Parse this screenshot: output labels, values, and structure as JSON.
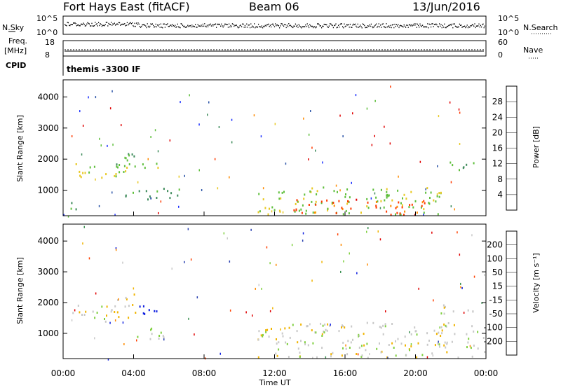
{
  "header": {
    "radar": "Fort Hays East (fitACF)",
    "beam": "Beam 06",
    "date": "13/Jun/2016"
  },
  "status": {
    "nsky_label": "N.Sky",
    "nsearch_label": "N.Search",
    "freq_label_line1": "Freq.",
    "freq_label_line2": "[MHz]",
    "nave_label": "Nave",
    "cpid_label": "CPID",
    "cpid_value": "themis -3300 IF",
    "noise_ticks_left": [
      "10^5",
      "10^0"
    ],
    "noise_ticks_right": [
      "10^5",
      "10^0"
    ],
    "freq_ticks": [
      "18",
      "8"
    ],
    "nave_ticks": [
      "60",
      "0"
    ]
  },
  "time_ticks": [
    "00:00",
    "04:00",
    "08:00",
    "12:00",
    "16:00",
    "20:00",
    "00:00"
  ],
  "x_label": "Time UT",
  "range_ticks": [
    "1000",
    "2000",
    "3000",
    "4000"
  ],
  "y_label": "Slant Range [km]",
  "power_bar": {
    "label": "Power [dB]",
    "ticks": [
      "4",
      "8",
      "12",
      "16",
      "20",
      "24",
      "28"
    ],
    "colors": [
      "#1e32ff",
      "#2d55a8",
      "#3d8a5a",
      "#5fbf3c",
      "#e8c820",
      "#ff8a00",
      "#ff3a00",
      "#e00000"
    ]
  },
  "velocity_bar": {
    "label": "Velocity [m s⁻¹]",
    "ticks": [
      "-200",
      "-100",
      "-50",
      "-15",
      "15",
      "50",
      "100",
      "200"
    ],
    "colors": [
      "#e00000",
      "#ff4000",
      "#ff8a00",
      "#f0b400",
      "#c8c8c8",
      "#80d040",
      "#3a9050",
      "#2840b0",
      "#1020e0"
    ]
  },
  "chart_data": [
    {
      "type": "heatmap",
      "panel": "power",
      "ylabel": "Slant Range [km]",
      "xlabel": "Time UT",
      "xlim_hours": [
        0,
        24
      ],
      "ylim_km": [
        180,
        4550
      ],
      "colorbar_label": "Power [dB]",
      "colorbar_range": [
        0,
        30
      ],
      "regions": [
        {
          "t": [
            0.1,
            3.6
          ],
          "r": [
            1350,
            1900
          ],
          "value": 15
        },
        {
          "t": [
            3.0,
            4.1
          ],
          "r": [
            1600,
            2400
          ],
          "value": 12
        },
        {
          "t": [
            4.4,
            5.5
          ],
          "r": [
            1550,
            1850
          ],
          "value": 14
        },
        {
          "t": [
            0.3,
            0.8
          ],
          "r": [
            200,
            650
          ],
          "value": 10
        },
        {
          "t": [
            3.5,
            7.2
          ],
          "r": [
            700,
            1100
          ],
          "value": 9
        },
        {
          "t": [
            11.0,
            21.5
          ],
          "r": [
            200,
            1100
          ],
          "value": 14
        },
        {
          "t": [
            13.0,
            20.5
          ],
          "r": [
            200,
            700
          ],
          "value": 24
        },
        {
          "t": [
            21.3,
            23.5
          ],
          "r": [
            1600,
            1900
          ],
          "value": 11
        }
      ]
    },
    {
      "type": "heatmap",
      "panel": "velocity",
      "ylabel": "Slant Range [km]",
      "xlabel": "Time UT",
      "xlim_hours": [
        0,
        24
      ],
      "ylim_km": [
        180,
        4550
      ],
      "colorbar_label": "Velocity [m s⁻¹]",
      "colorbar_range": [
        -250,
        250
      ],
      "regions": [
        {
          "t": [
            0.1,
            3.0
          ],
          "r": [
            1350,
            1900
          ],
          "value": 0
        },
        {
          "t": [
            3.0,
            4.1
          ],
          "r": [
            1500,
            2400
          ],
          "value": -40
        },
        {
          "t": [
            4.2,
            5.8
          ],
          "r": [
            1500,
            1900
          ],
          "value": 220
        },
        {
          "t": [
            4.0,
            5.8
          ],
          "r": [
            700,
            1200
          ],
          "value": 40
        },
        {
          "t": [
            11.0,
            23.9
          ],
          "r": [
            200,
            1350
          ],
          "value": 0
        },
        {
          "t": [
            21.3,
            23.5
          ],
          "r": [
            1600,
            1950
          ],
          "value": 0
        }
      ]
    }
  ]
}
